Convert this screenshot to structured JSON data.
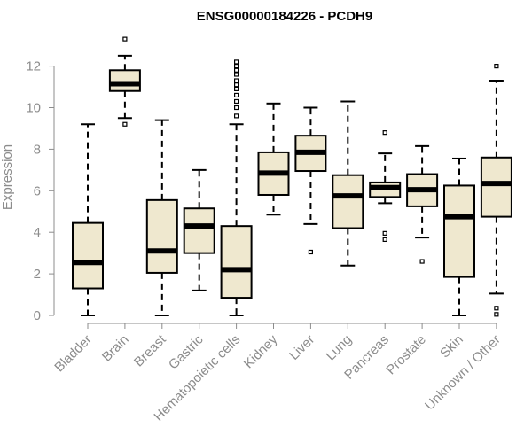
{
  "chart_data": {
    "type": "boxplot",
    "title": "ENSG00000184226 - PCDH9",
    "xlabel": "",
    "ylabel": "Expression",
    "ylim": [
      0,
      12.8
    ],
    "yticks": [
      0,
      2,
      4,
      6,
      8,
      10,
      12
    ],
    "box_color": "#efe8cf",
    "stroke_color": "#000000",
    "axis_color": "#8c8c8c",
    "categories": [
      "Bladder",
      "Brain",
      "Breast",
      "Gastric",
      "Hematopoietic cells",
      "Kidney",
      "Liver",
      "Lung",
      "Pancreas",
      "Prostate",
      "Skin",
      "Unknown / Other"
    ],
    "boxes": [
      {
        "name": "Bladder",
        "whisker_low": 0.0,
        "q1": 1.3,
        "median": 2.55,
        "q3": 4.45,
        "whisker_high": 9.2,
        "outliers": []
      },
      {
        "name": "Brain",
        "whisker_low": 9.5,
        "q1": 10.8,
        "median": 11.15,
        "q3": 11.8,
        "whisker_high": 12.5,
        "outliers": [
          9.2,
          13.3
        ]
      },
      {
        "name": "Breast",
        "whisker_low": 0.0,
        "q1": 2.05,
        "median": 3.1,
        "q3": 5.55,
        "whisker_high": 9.4,
        "outliers": []
      },
      {
        "name": "Gastric",
        "whisker_low": 1.2,
        "q1": 3.0,
        "median": 4.3,
        "q3": 5.15,
        "whisker_high": 7.0,
        "outliers": []
      },
      {
        "name": "Hematopoietic cells",
        "whisker_low": 0.0,
        "q1": 0.85,
        "median": 2.2,
        "q3": 4.3,
        "whisker_high": 9.2,
        "outliers": [
          9.6,
          10.0,
          10.3,
          10.6,
          10.9,
          11.1,
          11.3,
          11.6,
          11.8,
          12.0,
          12.2
        ]
      },
      {
        "name": "Kidney",
        "whisker_low": 4.85,
        "q1": 5.8,
        "median": 6.85,
        "q3": 7.85,
        "whisker_high": 10.2,
        "outliers": []
      },
      {
        "name": "Liver",
        "whisker_low": 4.4,
        "q1": 6.95,
        "median": 7.85,
        "q3": 8.65,
        "whisker_high": 10.0,
        "outliers": [
          3.05
        ]
      },
      {
        "name": "Lung",
        "whisker_low": 2.4,
        "q1": 4.2,
        "median": 5.75,
        "q3": 6.75,
        "whisker_high": 10.3,
        "outliers": []
      },
      {
        "name": "Pancreas",
        "whisker_low": 5.4,
        "q1": 5.7,
        "median": 6.15,
        "q3": 6.4,
        "whisker_high": 7.8,
        "outliers": [
          8.8,
          3.95,
          3.65
        ]
      },
      {
        "name": "Prostate",
        "whisker_low": 3.75,
        "q1": 5.25,
        "median": 6.05,
        "q3": 6.8,
        "whisker_high": 8.15,
        "outliers": [
          2.6
        ]
      },
      {
        "name": "Skin",
        "whisker_low": 0.0,
        "q1": 1.85,
        "median": 4.75,
        "q3": 6.25,
        "whisker_high": 7.55,
        "outliers": []
      },
      {
        "name": "Unknown / Other",
        "whisker_low": 1.05,
        "q1": 4.75,
        "median": 6.35,
        "q3": 7.6,
        "whisker_high": 11.3,
        "outliers": [
          12.0,
          0.35,
          0.05
        ]
      }
    ]
  }
}
